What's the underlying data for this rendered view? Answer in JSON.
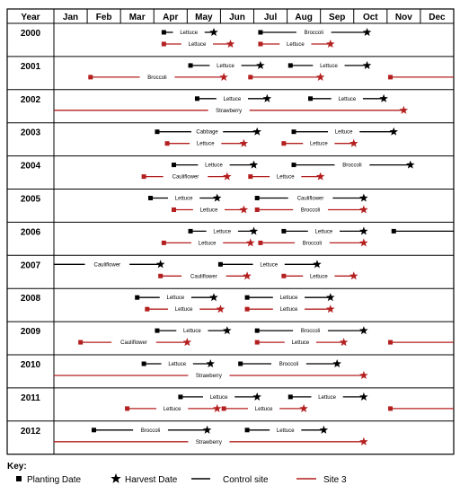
{
  "header": {
    "year_label": "Year",
    "months": [
      "Jan",
      "Feb",
      "Mar",
      "Apr",
      "May",
      "Jun",
      "Jul",
      "Aug",
      "Sep",
      "Oct",
      "Nov",
      "Dec"
    ]
  },
  "colors": {
    "control": "#000000",
    "site3": "#b41f1f"
  },
  "chart_data": {
    "type": "gantt",
    "x_unit": "month",
    "years": [
      {
        "year": "2000",
        "bars": [
          {
            "site": "control",
            "crop": "Lettuce",
            "start": 4.3,
            "end": 5.8
          },
          {
            "site": "control",
            "crop": "Broccoli",
            "start": 7.2,
            "end": 10.4
          },
          {
            "site": "site3",
            "crop": "Lettuce",
            "start": 4.3,
            "end": 6.3
          },
          {
            "site": "site3",
            "crop": "Lettuce",
            "start": 7.2,
            "end": 9.3
          }
        ]
      },
      {
        "year": "2001",
        "bars": [
          {
            "site": "control",
            "crop": "Lettuce",
            "start": 5.1,
            "end": 7.2
          },
          {
            "site": "control",
            "crop": "Lettuce",
            "start": 8.1,
            "end": 10.4
          },
          {
            "site": "site3",
            "crop": "Broccoli",
            "start": 2.1,
            "end": 6.1
          },
          {
            "site": "site3",
            "crop": "",
            "start": 6.9,
            "end": 9.0
          },
          {
            "site": "site3",
            "crop": "",
            "start": 11.1,
            "end": 13.0
          }
        ]
      },
      {
        "year": "2002",
        "bars": [
          {
            "site": "control",
            "crop": "Lettuce",
            "start": 5.3,
            "end": 7.4
          },
          {
            "site": "control",
            "crop": "Lettuce",
            "start": 8.7,
            "end": 10.9
          },
          {
            "site": "site3",
            "crop": "Strawberry",
            "start": 1.0,
            "end": 11.5
          }
        ]
      },
      {
        "year": "2003",
        "bars": [
          {
            "site": "control",
            "crop": "Cabbage",
            "start": 4.1,
            "end": 7.1
          },
          {
            "site": "control",
            "crop": "Lettuce",
            "start": 8.2,
            "end": 11.2
          },
          {
            "site": "site3",
            "crop": "Lettuce",
            "start": 4.4,
            "end": 6.7
          },
          {
            "site": "site3",
            "crop": "Lettuce",
            "start": 7.9,
            "end": 10.0
          }
        ]
      },
      {
        "year": "2004",
        "bars": [
          {
            "site": "control",
            "crop": "Lettuce",
            "start": 4.6,
            "end": 7.0
          },
          {
            "site": "control",
            "crop": "Broccoli",
            "start": 8.2,
            "end": 11.7
          },
          {
            "site": "site3",
            "crop": "Cauliflower",
            "start": 3.7,
            "end": 6.2
          },
          {
            "site": "site3",
            "crop": "Lettuce",
            "start": 6.9,
            "end": 9.0
          }
        ]
      },
      {
        "year": "2005",
        "bars": [
          {
            "site": "control",
            "crop": "Lettuce",
            "start": 3.9,
            "end": 5.9
          },
          {
            "site": "control",
            "crop": "Cauliflower",
            "start": 7.1,
            "end": 10.3
          },
          {
            "site": "site3",
            "crop": "Lettuce",
            "start": 4.6,
            "end": 6.7
          },
          {
            "site": "site3",
            "crop": "Broccoli",
            "start": 7.1,
            "end": 10.3
          }
        ]
      },
      {
        "year": "2006",
        "bars": [
          {
            "site": "control",
            "crop": "Lettuce",
            "start": 5.1,
            "end": 7.0
          },
          {
            "site": "control",
            "crop": "Lettuce",
            "start": 7.9,
            "end": 10.3
          },
          {
            "site": "control",
            "crop": "",
            "start": 11.2,
            "end": 13.0
          },
          {
            "site": "site3",
            "crop": "Lettuce",
            "start": 4.3,
            "end": 6.9
          },
          {
            "site": "site3",
            "crop": "Broccoli",
            "start": 7.2,
            "end": 10.3
          }
        ]
      },
      {
        "year": "2007",
        "bars": [
          {
            "site": "control",
            "crop": "Cauliflower",
            "start": 1.0,
            "end": 4.2
          },
          {
            "site": "control",
            "crop": "Lettuce",
            "start": 6.0,
            "end": 8.9
          },
          {
            "site": "site3",
            "crop": "Cauliflower",
            "start": 4.2,
            "end": 6.8
          },
          {
            "site": "site3",
            "crop": "Lettuce",
            "start": 7.9,
            "end": 10.0
          }
        ]
      },
      {
        "year": "2008",
        "bars": [
          {
            "site": "control",
            "crop": "Lettuce",
            "start": 3.5,
            "end": 5.8
          },
          {
            "site": "control",
            "crop": "Lettuce",
            "start": 6.8,
            "end": 9.3
          },
          {
            "site": "site3",
            "crop": "Lettuce",
            "start": 3.8,
            "end": 6.0
          },
          {
            "site": "site3",
            "crop": "Lettuce",
            "start": 6.8,
            "end": 9.3
          }
        ]
      },
      {
        "year": "2009",
        "bars": [
          {
            "site": "control",
            "crop": "Lettuce",
            "start": 4.1,
            "end": 6.2
          },
          {
            "site": "control",
            "crop": "Broccoli",
            "start": 7.1,
            "end": 10.3
          },
          {
            "site": "site3",
            "crop": "Cauliflower",
            "start": 1.8,
            "end": 5.0
          },
          {
            "site": "site3",
            "crop": "Lettuce",
            "start": 7.1,
            "end": 9.7
          },
          {
            "site": "site3",
            "crop": "",
            "start": 11.1,
            "end": 13.0
          }
        ]
      },
      {
        "year": "2010",
        "bars": [
          {
            "site": "control",
            "crop": "Lettuce",
            "start": 3.7,
            "end": 5.7
          },
          {
            "site": "control",
            "crop": "Broccoli",
            "start": 6.6,
            "end": 9.5
          },
          {
            "site": "site3",
            "crop": "Strawberry",
            "start": 1.0,
            "end": 10.3
          }
        ]
      },
      {
        "year": "2011",
        "bars": [
          {
            "site": "control",
            "crop": "Lettuce",
            "start": 4.8,
            "end": 7.1
          },
          {
            "site": "control",
            "crop": "Lettuce",
            "start": 8.1,
            "end": 10.3
          },
          {
            "site": "site3",
            "crop": "Lettuce",
            "start": 3.2,
            "end": 5.9
          },
          {
            "site": "site3",
            "crop": "Lettuce",
            "start": 6.1,
            "end": 8.5
          },
          {
            "site": "site3",
            "crop": "",
            "start": 11.1,
            "end": 13.0
          }
        ]
      },
      {
        "year": "2012",
        "bars": [
          {
            "site": "control",
            "crop": "Broccoli",
            "start": 2.2,
            "end": 5.6
          },
          {
            "site": "control",
            "crop": "Lettuce",
            "start": 6.8,
            "end": 9.1
          },
          {
            "site": "site3",
            "crop": "Strawberry",
            "start": 1.0,
            "end": 10.3
          }
        ]
      }
    ]
  },
  "key": {
    "title": "Key:",
    "planting": "Planting Date",
    "harvest": "Harvest Date",
    "control": "Control site",
    "site3": "Site 3"
  }
}
